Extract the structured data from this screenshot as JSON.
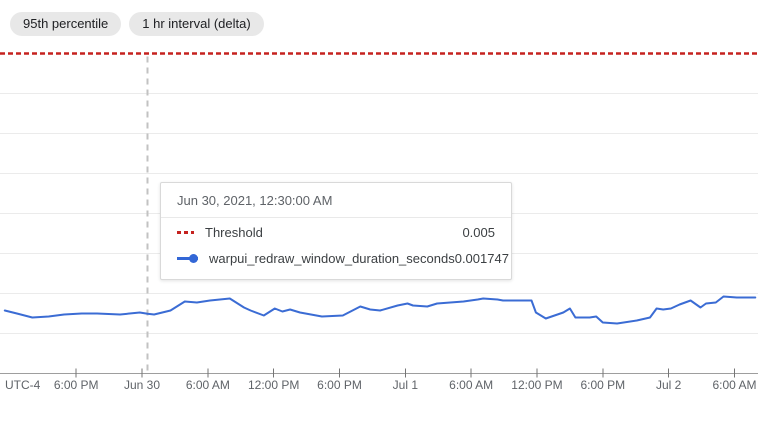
{
  "header": {
    "chips": [
      {
        "label": "95th percentile"
      },
      {
        "label": "1 hr interval (delta)"
      }
    ]
  },
  "tooltip": {
    "timestamp": "Jun 30, 2021, 12:30:00 AM",
    "rows": [
      {
        "icon": "threshold-dash-icon",
        "label": "Threshold",
        "value": "0.005",
        "color": "#c5221f"
      },
      {
        "icon": "series-line-dot-icon",
        "label": "warpui_redraw_window_duration_seconds",
        "value": "0.001747",
        "color": "#3367d6"
      }
    ]
  },
  "chart_data": {
    "type": "line",
    "title": "",
    "xlabel": "",
    "ylabel": "",
    "grid": true,
    "legend_position": "none",
    "x_axis": {
      "timezone_label": "UTC-4",
      "tick_labels": [
        "6:00 PM",
        "Jun 30",
        "6:00 AM",
        "12:00 PM",
        "6:00 PM",
        "Jul 1",
        "6:00 AM",
        "12:00 PM",
        "6:00 PM",
        "Jul 2",
        "6:00 AM"
      ],
      "tick_hours_from_jun30_midnight": [
        -6,
        0,
        6,
        12,
        18,
        24,
        30,
        36,
        42,
        48,
        54
      ]
    },
    "y_axis": {
      "min": 0.001,
      "max": 0.005,
      "gridline_step": 0.0005,
      "labels_visible": false
    },
    "threshold": {
      "name": "Threshold",
      "value": 0.005,
      "color": "#c5221f",
      "style": "dashed"
    },
    "crosshair": {
      "hours_from_jun30_midnight": 0.5,
      "time_label": "Jun 30, 2021, 12:30:00 AM",
      "point_value": 0.001747,
      "color": "#c2c2c2"
    },
    "series": [
      {
        "name": "warpui_redraw_window_duration_seconds",
        "color": "#3b6cd4",
        "points": [
          [
            -12.5,
            0.001788
          ],
          [
            -11.4,
            0.00175
          ],
          [
            -10.0,
            0.0017
          ],
          [
            -8.5,
            0.001713
          ],
          [
            -7.1,
            0.001738
          ],
          [
            -5.5,
            0.00175
          ],
          [
            -4.1,
            0.00175
          ],
          [
            -2.0,
            0.001738
          ],
          [
            -0.2,
            0.001763
          ],
          [
            0.5,
            0.001747
          ],
          [
            1.1,
            0.001738
          ],
          [
            2.6,
            0.001788
          ],
          [
            3.9,
            0.0019
          ],
          [
            5.0,
            0.001888
          ],
          [
            6.2,
            0.001913
          ],
          [
            8.0,
            0.001938
          ],
          [
            9.3,
            0.001825
          ],
          [
            9.9,
            0.001788
          ],
          [
            11.1,
            0.001725
          ],
          [
            12.1,
            0.001813
          ],
          [
            12.8,
            0.001775
          ],
          [
            13.5,
            0.0018
          ],
          [
            14.4,
            0.001763
          ],
          [
            16.4,
            0.001713
          ],
          [
            18.3,
            0.001725
          ],
          [
            19.9,
            0.001838
          ],
          [
            20.8,
            0.0018
          ],
          [
            21.7,
            0.001788
          ],
          [
            23.3,
            0.00185
          ],
          [
            24.2,
            0.001875
          ],
          [
            24.7,
            0.00185
          ],
          [
            26.0,
            0.001838
          ],
          [
            26.9,
            0.001875
          ],
          [
            28.1,
            0.001888
          ],
          [
            29.3,
            0.0019
          ],
          [
            30.6,
            0.001925
          ],
          [
            31.1,
            0.001938
          ],
          [
            32.4,
            0.001925
          ],
          [
            32.9,
            0.001913
          ],
          [
            35.5,
            0.001913
          ],
          [
            35.9,
            0.001763
          ],
          [
            36.8,
            0.001688
          ],
          [
            38.4,
            0.001763
          ],
          [
            39.0,
            0.001813
          ],
          [
            39.5,
            0.0017
          ],
          [
            40.8,
            0.0017
          ],
          [
            41.4,
            0.001713
          ],
          [
            42.0,
            0.001638
          ],
          [
            43.3,
            0.001625
          ],
          [
            45.1,
            0.001663
          ],
          [
            46.3,
            0.0017
          ],
          [
            46.9,
            0.001813
          ],
          [
            47.5,
            0.0018
          ],
          [
            48.2,
            0.001813
          ],
          [
            49.0,
            0.001863
          ],
          [
            50.0,
            0.001913
          ],
          [
            50.9,
            0.001825
          ],
          [
            51.4,
            0.001875
          ],
          [
            52.3,
            0.001888
          ],
          [
            53.0,
            0.001963
          ],
          [
            54.2,
            0.00195
          ],
          [
            55.9,
            0.00195
          ]
        ]
      }
    ],
    "colors": {
      "grid": "#ebebeb",
      "axis": "#9e9e9e",
      "tick": "#757575",
      "tick_label": "#5f6368"
    }
  }
}
